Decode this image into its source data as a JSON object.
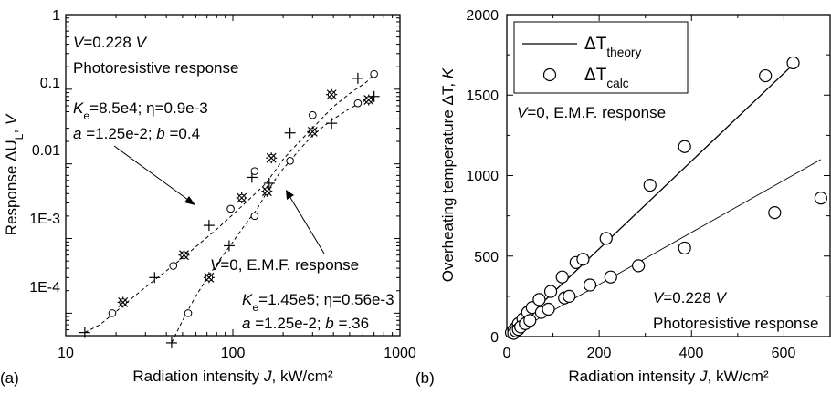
{
  "panel_labels": [
    "(a)",
    "(b)"
  ],
  "chart_data": [
    {
      "type": "scatter",
      "panel": "(a)",
      "xlabel": "Radiation intensity J, kW/cm²",
      "ylabel": "Response ΔU_L, V",
      "x_scale": "log",
      "y_scale": "log",
      "xlim": [
        10,
        1000
      ],
      "ylim": [
        5e-05,
        1
      ],
      "x_ticks": [
        "10",
        "100",
        "1000"
      ],
      "y_ticks": [
        "1E-4",
        "1E-3",
        "0.01",
        "0.1",
        "1"
      ],
      "grid": false,
      "annotations": {
        "v1": "V=0.228 V",
        "r1": "Photoresistive response",
        "p1a": "K_e=8.5e4; η=0.9e-3",
        "p1b": "a =1.25e-2; b =0.4",
        "v2": "V=0, E.M.F. response",
        "p2a": "K_e=1.45e5; η=0.56e-3",
        "p2b": "a =1.25e-2; b =.36"
      },
      "series": [
        {
          "marker": "mixed",
          "x": [
            13,
            19,
            22,
            34,
            44,
            51,
            72,
            97,
            113,
            130,
            135,
            170,
            220,
            300,
            390,
            560,
            700
          ],
          "y": [
            5.5e-05,
            0.0001,
            0.00014,
            0.0003,
            0.00043,
            0.0006,
            0.0015,
            0.0025,
            0.0035,
            0.0066,
            0.008,
            0.012,
            0.026,
            0.045,
            0.085,
            0.14,
            0.16
          ],
          "fit": {
            "x": [
              13,
              16,
              20,
              25,
              32,
              40,
              50,
              63,
              79,
              100,
              126,
              158,
              200,
              251,
              316,
              398,
              501,
              631,
              700
            ],
            "y": [
              5.5e-05,
              7e-05,
              0.000105,
              0.00016,
              0.00025,
              0.00037,
              0.00055,
              0.00085,
              0.0013,
              0.0021,
              0.0034,
              0.0055,
              0.0115,
              0.02,
              0.034,
              0.058,
              0.088,
              0.125,
              0.16
            ]
          }
        },
        {
          "marker": "mixed",
          "x": [
            43,
            54,
            72,
            95,
            135,
            160,
            165,
            220,
            300,
            390,
            560,
            650,
            700
          ],
          "y": [
            4e-05,
            0.0001,
            0.0003,
            0.0008,
            0.002,
            0.0043,
            0.0055,
            0.011,
            0.027,
            0.035,
            0.065,
            0.072,
            0.08
          ],
          "fit": {
            "x": [
              43,
              50,
              60,
              72,
              85,
              100,
              120,
              140,
              160,
              190,
              220,
              260,
              300,
              350,
              400,
              500,
              600,
              700
            ],
            "y": [
              4e-05,
              8e-05,
              0.00017,
              0.00032,
              0.00055,
              0.0009,
              0.0016,
              0.0025,
              0.0042,
              0.0075,
              0.011,
              0.017,
              0.024,
              0.032,
              0.04,
              0.055,
              0.068,
              0.08
            ]
          }
        }
      ]
    },
    {
      "type": "scatter",
      "panel": "(b)",
      "xlabel": "Radiation intensity J, kW/cm²",
      "ylabel": "Overheating temperature ΔT, K",
      "xlim": [
        0,
        700
      ],
      "ylim": [
        0,
        2000
      ],
      "x_ticks": [
        "0",
        "200",
        "400",
        "600"
      ],
      "y_ticks": [
        "0",
        "500",
        "1000",
        "1500",
        "2000"
      ],
      "grid": false,
      "legend": {
        "position": "top-left",
        "entries": [
          "ΔT_theory",
          "ΔT_calc"
        ]
      },
      "annotations": {
        "v1": "V=0, E.M.F. response",
        "v2": "V=0.228 V",
        "r2": "Photoresistive response"
      },
      "theory_lines": [
        {
          "x": [
            0,
            620
          ],
          "y": [
            0,
            1690
          ]
        },
        {
          "x": [
            0,
            680
          ],
          "y": [
            0,
            1100
          ]
        }
      ],
      "calc_points": {
        "x": [
          10,
          15,
          20,
          25,
          35,
          45,
          55,
          70,
          95,
          120,
          150,
          165,
          215,
          310,
          385,
          560,
          620,
          15,
          20,
          25,
          30,
          40,
          50,
          75,
          90,
          125,
          135,
          180,
          225,
          285,
          385,
          580,
          680
        ],
        "y": [
          25,
          40,
          55,
          80,
          110,
          150,
          180,
          230,
          280,
          370,
          460,
          480,
          610,
          940,
          1180,
          1620,
          1700,
          20,
          35,
          45,
          60,
          80,
          100,
          150,
          170,
          240,
          250,
          320,
          370,
          440,
          550,
          770,
          860
        ]
      }
    }
  ]
}
